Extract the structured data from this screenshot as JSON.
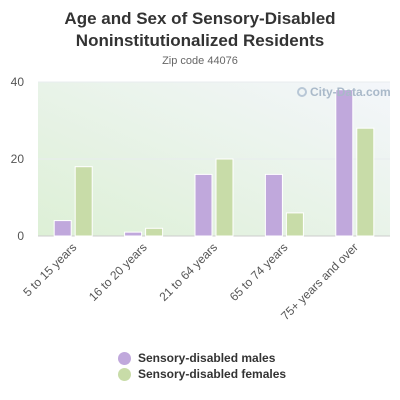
{
  "title": "Age and Sex of Sensory-Disabled Noninstitutionalized Residents",
  "subtitle": "Zip code 44076",
  "watermark": "City-Data.com",
  "colors": {
    "males": "#c0a8dc",
    "females": "#c8dca8",
    "plot_bg_top": "#f4f6fb",
    "plot_bg_bottom": "#ddf0d6"
  },
  "chart_data": {
    "type": "bar",
    "categories": [
      "5 to 15 years",
      "16 to 20 years",
      "21 to 64 years",
      "65 to 74 years",
      "75+ years and over"
    ],
    "series": [
      {
        "name": "Sensory-disabled males",
        "values": [
          4,
          1,
          16,
          16,
          38
        ]
      },
      {
        "name": "Sensory-disabled females",
        "values": [
          18,
          2,
          20,
          6,
          28
        ]
      }
    ],
    "yticks": [
      0,
      20,
      40
    ],
    "ylim": [
      0,
      40
    ],
    "grid": true,
    "legend_position": "bottom"
  }
}
